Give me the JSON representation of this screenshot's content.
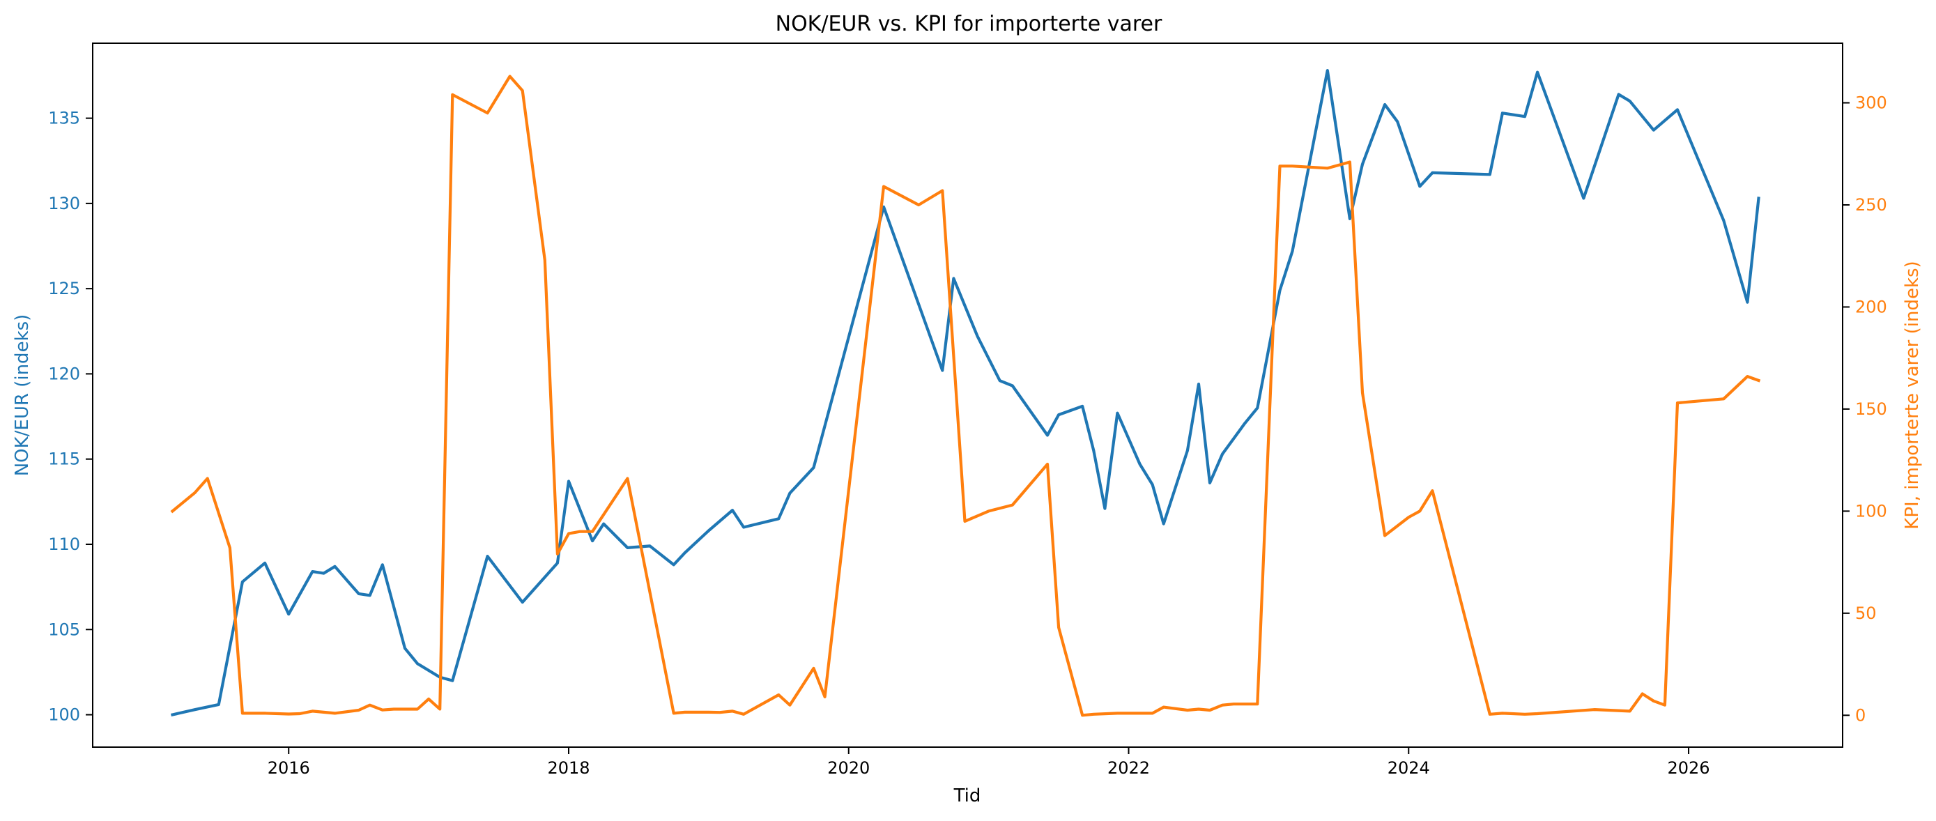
{
  "chart_data": {
    "type": "line",
    "title": "NOK/EUR vs. KPI for importerte varer",
    "xlabel": "Tid",
    "ylabel_left": "NOK/EUR (indeks)",
    "ylabel_right": "KPI, importerte varer (indeks)",
    "grid": false,
    "xlim": [
      2014.6,
      2027.1
    ],
    "ylim_left": [
      98.1,
      139.4
    ],
    "ylim_right": [
      -15.6,
      329.2
    ],
    "x_ticks": [
      2016,
      2018,
      2020,
      2022,
      2024,
      2026
    ],
    "x_tick_labels": [
      "2016",
      "2018",
      "2020",
      "2022",
      "2024",
      "2026"
    ],
    "y_ticks_left": [
      100,
      105,
      110,
      115,
      120,
      125,
      130,
      135
    ],
    "y_tick_labels_left": [
      "100",
      "105",
      "110",
      "115",
      "120",
      "125",
      "130",
      "135"
    ],
    "y_ticks_right": [
      0,
      50,
      100,
      150,
      200,
      250,
      300
    ],
    "y_tick_labels_right": [
      "0",
      "50",
      "100",
      "150",
      "200",
      "250",
      "300"
    ],
    "series": [
      {
        "axis": "left",
        "color": "#1f77b4",
        "x": [
          2015.17,
          2015.33,
          2015.5,
          2015.67,
          2015.83,
          2016.0,
          2016.17,
          2016.25,
          2016.33,
          2016.5,
          2016.58,
          2016.67,
          2016.83,
          2016.92,
          2017.08,
          2017.17,
          2017.42,
          2017.67,
          2017.92,
          2018.0,
          2018.17,
          2018.25,
          2018.42,
          2018.58,
          2018.75,
          2018.83,
          2019.0,
          2019.17,
          2019.25,
          2019.5,
          2019.58,
          2019.75,
          2020.25,
          2020.67,
          2020.75,
          2020.92,
          2021.08,
          2021.17,
          2021.42,
          2021.5,
          2021.67,
          2021.75,
          2021.83,
          2021.92,
          2022.08,
          2022.17,
          2022.25,
          2022.42,
          2022.5,
          2022.58,
          2022.67,
          2022.83,
          2022.92,
          2023.08,
          2023.17,
          2023.42,
          2023.58,
          2023.67,
          2023.83,
          2023.92,
          2024.08,
          2024.17,
          2024.58,
          2024.67,
          2024.83,
          2024.92,
          2025.25,
          2025.5,
          2025.58,
          2025.75,
          2025.92,
          2026.25,
          2026.42,
          2026.5
        ],
        "y": [
          100.0,
          100.3,
          100.6,
          107.8,
          108.9,
          105.9,
          108.4,
          108.3,
          108.7,
          107.1,
          107.0,
          108.8,
          103.9,
          103.0,
          102.2,
          102.0,
          109.3,
          106.6,
          108.9,
          113.7,
          110.2,
          111.2,
          109.8,
          109.9,
          108.8,
          109.5,
          110.8,
          112.0,
          111.0,
          111.5,
          113.0,
          114.5,
          129.8,
          120.2,
          125.6,
          122.2,
          119.6,
          119.3,
          116.4,
          117.6,
          118.1,
          115.5,
          112.1,
          117.7,
          114.7,
          113.5,
          111.2,
          115.5,
          119.4,
          113.6,
          115.3,
          117.1,
          118.0,
          124.9,
          127.2,
          137.8,
          129.1,
          132.3,
          135.8,
          134.8,
          131.0,
          131.8,
          131.7,
          135.3,
          135.1,
          137.7,
          130.3,
          136.4,
          136.0,
          134.3,
          135.5,
          129.0,
          124.2,
          130.3
        ]
      },
      {
        "axis": "right",
        "color": "#ff7f0e",
        "x": [
          2015.17,
          2015.33,
          2015.42,
          2015.58,
          2015.67,
          2015.83,
          2016.0,
          2016.08,
          2016.17,
          2016.33,
          2016.5,
          2016.58,
          2016.67,
          2016.75,
          2016.92,
          2017.0,
          2017.08,
          2017.17,
          2017.42,
          2017.58,
          2017.67,
          2017.83,
          2017.92,
          2018.0,
          2018.08,
          2018.17,
          2018.42,
          2018.75,
          2018.83,
          2019.0,
          2019.08,
          2019.17,
          2019.25,
          2019.5,
          2019.58,
          2019.75,
          2019.83,
          2020.25,
          2020.5,
          2020.67,
          2020.83,
          2021.0,
          2021.17,
          2021.42,
          2021.5,
          2021.67,
          2021.75,
          2021.92,
          2022.08,
          2022.17,
          2022.25,
          2022.42,
          2022.5,
          2022.58,
          2022.67,
          2022.75,
          2022.92,
          2023.08,
          2023.17,
          2023.42,
          2023.58,
          2023.67,
          2023.83,
          2024.0,
          2024.08,
          2024.17,
          2024.58,
          2024.67,
          2024.83,
          2024.92,
          2025.33,
          2025.58,
          2025.67,
          2025.75,
          2025.83,
          2025.92,
          2026.25,
          2026.42,
          2026.5
        ],
        "y": [
          100.0,
          109.0,
          116.0,
          82.0,
          1.0,
          1.0,
          0.6,
          0.8,
          2.0,
          1.0,
          2.5,
          5.0,
          2.6,
          3.0,
          3.0,
          8.0,
          3.0,
          304.0,
          295.0,
          313.0,
          306.0,
          223.0,
          79.0,
          89.0,
          90.0,
          90.0,
          116.0,
          1.0,
          1.5,
          1.5,
          1.4,
          2.0,
          0.5,
          10.0,
          5.0,
          23.0,
          9.0,
          259.0,
          250.0,
          257.0,
          95.0,
          100.0,
          103.0,
          123.0,
          43.0,
          0.0,
          0.5,
          1.0,
          1.0,
          1.0,
          4.0,
          2.5,
          3.0,
          2.5,
          5.0,
          5.5,
          5.5,
          269.0,
          269.0,
          268.0,
          271.0,
          158.0,
          88.0,
          97.0,
          100.0,
          110.0,
          0.5,
          1.0,
          0.5,
          0.8,
          2.8,
          2.0,
          10.5,
          7.0,
          5.0,
          153.0,
          155.0,
          166.0,
          164.0
        ]
      }
    ]
  }
}
